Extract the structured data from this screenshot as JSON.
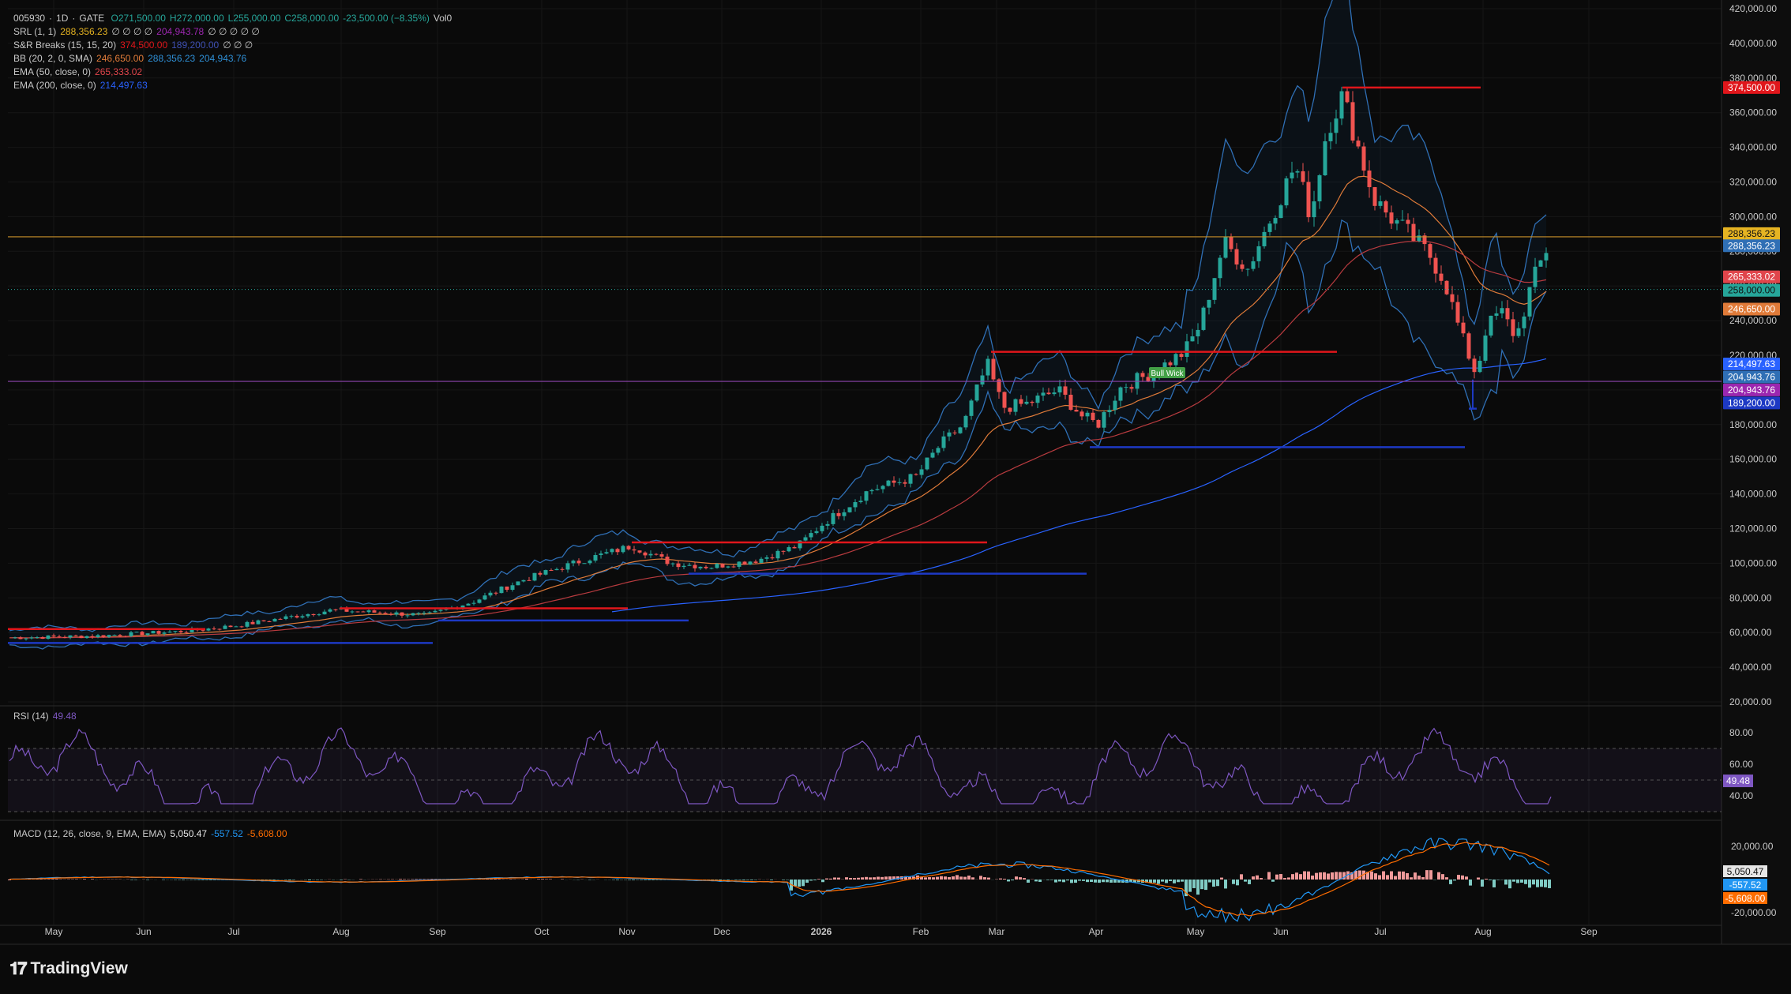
{
  "header": {
    "symbol": "005930",
    "sep1": "·",
    "interval": "1D",
    "sep2": "·",
    "exchange": "GATE",
    "o": "O271,500.00",
    "h": "H272,000.00",
    "l": "L255,000.00",
    "c": "C258,000.00",
    "chg": "-23,500.00 (−8.35%)",
    "vol": "Vol0"
  },
  "legend": {
    "srl": {
      "name": "SRL (1, 1)",
      "v1": "288,356.23",
      "zeros": "∅ ∅ ∅ ∅",
      "v2": "204,943.78",
      "zeros2": "∅ ∅ ∅ ∅ ∅"
    },
    "snr": {
      "name": "S&R Breaks (15, 15, 20)",
      "v1": "374,500.00",
      "v2": "189,200.00",
      "zeros": "∅ ∅ ∅"
    },
    "bb": {
      "name": "BB (20, 2, 0, SMA)",
      "v1": "246,650.00",
      "v2": "288,356.23",
      "v3": "204,943.76"
    },
    "ema50": {
      "name": "EMA (50, close, 0)",
      "v": "265,333.02"
    },
    "ema200": {
      "name": "EMA (200, close, 0)",
      "v": "214,497.63"
    },
    "rsi": {
      "name": "RSI (14)",
      "v": "49.48"
    },
    "macd": {
      "name": "MACD (12, 26, close, 9, EMA, EMA)",
      "v1": "5,050.47",
      "v2": "-557.52",
      "v3": "-5,608.00"
    }
  },
  "colors": {
    "up": "#26a69a",
    "down": "#ef5350",
    "bb": "#2f6fb5",
    "ema50": "#e07b39",
    "ema200": "#2962ff",
    "resistance": "#e0161b",
    "support": "#1d39c4",
    "rsi": "#7e57c2",
    "macd": "#2196f3",
    "signal": "#ff6d00",
    "srl": "#e6b422"
  },
  "price_axis": {
    "ticks": [
      "420,000.00",
      "400,000.00",
      "380,000.00",
      "360,000.00",
      "340,000.00",
      "320,000.00",
      "300,000.00",
      "280,000.00",
      "260,000.00",
      "240,000.00",
      "220,000.00",
      "200,000.00",
      "180,000.00",
      "160,000.00",
      "140,000.00",
      "120,000.00",
      "100,000.00",
      "80,000.00",
      "60,000.00",
      "40,000.00",
      "20,000.00"
    ],
    "badges": [
      {
        "text": "374,500.00",
        "value": 374500,
        "color": "#e0161b"
      },
      {
        "text": "288,356.23",
        "value": 290200,
        "color": "#e6b422"
      },
      {
        "text": "288,356.23",
        "value": 283200,
        "color": "#2f6fb5"
      },
      {
        "text": "265,333.02",
        "value": 265300,
        "color": "#e0454b"
      },
      {
        "text": "258,000.00",
        "value": 257500,
        "color": "#26a69a"
      },
      {
        "text": "246,650.00",
        "value": 246650,
        "color": "#e07b39"
      },
      {
        "text": "214,497.63",
        "value": 215000,
        "color": "#2962ff"
      },
      {
        "text": "204,943.76",
        "value": 207500,
        "color": "#2f6fb5"
      },
      {
        "text": "204,943.76",
        "value": 200000,
        "color": "#9c27b0"
      },
      {
        "text": "189,200.00",
        "value": 192500,
        "color": "#1d39c4"
      }
    ]
  },
  "rsi_axis": {
    "ticks": [
      "80.00",
      "60.00",
      "40.00"
    ],
    "badge": "49.48"
  },
  "macd_axis": {
    "ticks": [
      "20,000.00",
      "-20,000.00"
    ],
    "badges": [
      {
        "text": "5,050.47",
        "color": "#e6e6e6"
      },
      {
        "text": "-557.52",
        "color": "#2196f3"
      },
      {
        "text": "-5,608.00",
        "color": "#ff6d00"
      }
    ]
  },
  "time_axis": [
    "May",
    "Jun",
    "Jul",
    "Aug",
    "Sep",
    "Oct",
    "Nov",
    "Dec",
    "2026",
    "Feb",
    "Mar",
    "Apr",
    "May",
    "Jun",
    "Jul",
    "Aug",
    "Sep"
  ],
  "annotation": "Bull Wick",
  "brand": {
    "name": "TradingView"
  },
  "chart_data": {
    "type": "line",
    "title": "",
    "series": [
      {
        "name": "005930 close",
        "x": [
          "May",
          "Jun",
          "Jul",
          "Aug",
          "Sep",
          "Oct",
          "Nov",
          "Dec",
          "2026",
          "Feb",
          "Mar",
          "Apr",
          "May",
          "Jun",
          "Jul",
          "Aug"
        ],
        "values": [
          56000,
          58000,
          64000,
          72000,
          70000,
          88000,
          106000,
          100000,
          122000,
          160000,
          200000,
          192000,
          270000,
          340000,
          290000,
          258000
        ]
      }
    ],
    "levels": {
      "resistance": [
        62000,
        74000,
        112000,
        222000,
        374500
      ],
      "support": [
        54000,
        67000,
        94000,
        167000,
        189200
      ],
      "srl": 288356.23,
      "purple": 204943.78
    },
    "ylim": [
      20000,
      420000
    ],
    "rsi": {
      "value": 49.48,
      "ylim": [
        20,
        100
      ]
    },
    "macd": {
      "macd": 5050.47,
      "signal": -557.52,
      "hist": -5608.0
    }
  }
}
